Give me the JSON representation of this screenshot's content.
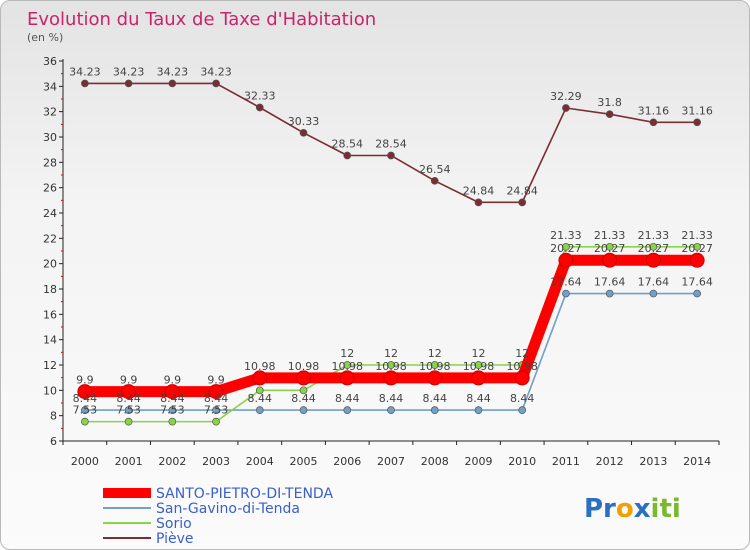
{
  "chart_data": {
    "type": "line",
    "title": "Evolution du Taux de Taxe d'Habitation",
    "subtitle": "(en %)",
    "categories": [
      "2000",
      "2001",
      "2002",
      "2003",
      "2004",
      "2005",
      "2006",
      "2007",
      "2008",
      "2009",
      "2010",
      "2011",
      "2012",
      "2013",
      "2014"
    ],
    "ylim": [
      6,
      36
    ],
    "yticks": [
      6,
      8,
      10,
      12,
      14,
      16,
      18,
      20,
      22,
      24,
      26,
      28,
      30,
      32,
      34,
      36
    ],
    "grid": false,
    "legend_position": "bottom-left",
    "series": [
      {
        "name": "SANTO-PIETRO-DI-TENDA",
        "color": "#ff0000",
        "values": [
          9.9,
          9.9,
          9.9,
          9.9,
          10.98,
          10.98,
          10.98,
          10.98,
          10.98,
          10.98,
          10.98,
          20.27,
          20.27,
          20.27,
          20.27
        ],
        "labels": [
          "9.9",
          "9.9",
          "9.9",
          "9.9",
          "10.98",
          "10.98",
          "10.98",
          "10.98",
          "10.98",
          "10.98",
          "10.98",
          "20.27",
          "20.27",
          "20.27",
          "20.27"
        ]
      },
      {
        "name": "San-Gavino-di-Tenda",
        "color": "#6fa0c8",
        "values": [
          8.44,
          8.44,
          8.44,
          8.44,
          8.44,
          8.44,
          8.44,
          8.44,
          8.44,
          8.44,
          8.44,
          17.64,
          17.64,
          17.64,
          17.64
        ],
        "labels": [
          "8.44",
          "8.44",
          "8.44",
          "8.44",
          "8.44",
          "8.44",
          "8.44",
          "8.44",
          "8.44",
          "8.44",
          "8.44",
          "17.64",
          "17.64",
          "17.64",
          "17.64"
        ]
      },
      {
        "name": "Sorio",
        "color": "#88d448",
        "values": [
          7.53,
          7.53,
          7.53,
          7.53,
          10,
          10,
          12,
          12,
          12,
          12,
          12,
          21.33,
          21.33,
          21.33,
          21.33
        ],
        "labels": [
          "7.53",
          "7.53",
          "7.53",
          "7.53",
          "",
          "",
          "12",
          "12",
          "12",
          "12",
          "12",
          "21.33",
          "21.33",
          "21.33",
          "21.33"
        ]
      },
      {
        "name": "Piève",
        "color": "#7a2d33",
        "values": [
          34.23,
          34.23,
          34.23,
          34.23,
          32.33,
          30.33,
          28.54,
          28.54,
          26.54,
          24.84,
          24.84,
          32.29,
          31.8,
          31.16,
          31.16
        ],
        "labels": [
          "34.23",
          "34.23",
          "34.23",
          "34.23",
          "32.33",
          "30.33",
          "28.54",
          "28.54",
          "26.54",
          "24.84",
          "24.84",
          "32.29",
          "31.8",
          "31.16",
          "31.16"
        ]
      }
    ]
  },
  "logo": {
    "text_a": "Pr",
    "text_b": "o",
    "text_c": "x",
    "text_d": "iti"
  }
}
